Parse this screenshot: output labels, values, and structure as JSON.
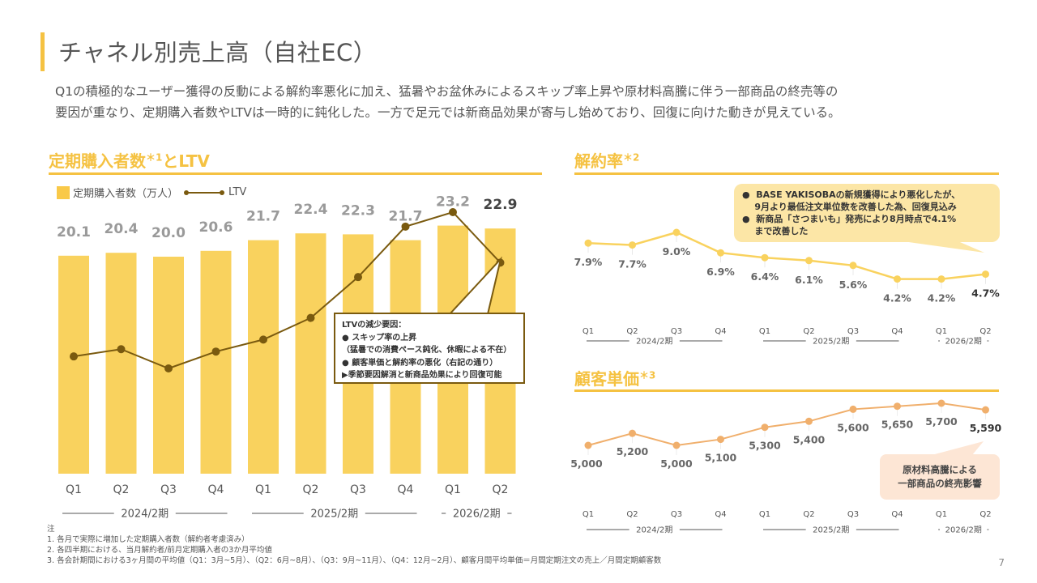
{
  "page": {
    "title": "チャネル別売上高（自社EC）",
    "lead": [
      "Q1の積極的なユーザー獲得の反動による解約率悪化に加え、猛暑やお盆休みによるスキップ率上昇や原材料高騰に伴う一部商品の終売等の",
      "要因が重なり、定期購入者数やLTVは一時的に鈍化した。一方で足元では新商品効果が寄与し始めており、回復に向けた動きが見えている。"
    ],
    "page_number": "7",
    "accent_color": "#F5C242",
    "notes": [
      "注",
      "1. 各月で実際に増加した定期購入者数（解約者考慮済み）",
      "2. 各四半期における、当月解約者/前月定期購入者の3か月平均値",
      "3. 各会計期間における3ヶ月間の平均値（Q1：3月~5月）、（Q2：6月~8月）、（Q3：9月~11月）、（Q4：12月~2月）、顧客月間平均単価＝月間定期注文の売上／月間定期顧客数"
    ]
  },
  "sections": {
    "subscribers": {
      "title": "定期購入者数",
      "sup": "＊1",
      "suffix": "とLTV"
    },
    "churn": {
      "title": "解約率",
      "sup": "＊2"
    },
    "unit_price": {
      "title": "顧客単価",
      "sup": "＊3"
    }
  },
  "legend": {
    "bar": "定期購入者数（万人）",
    "line": "LTV"
  },
  "callouts": {
    "ltv": {
      "title": "LTVの減少要因：",
      "lines": [
        "●  スキップ率の上昇",
        "（猛暑での消費ペース鈍化、休暇による不在）",
        "●  顧客単価と解約率の悪化（右記の通り）",
        "▶季節要因解消と新商品効果により回復可能"
      ]
    },
    "churn": {
      "lines": [
        "●  BASE YAKISOBAの新規獲得により悪化したが、",
        "    9月より最低注文単位数を改善した為、回復見込み",
        "●  新商品「さつまいも」発売により8月時点で4.1%",
        "    まで改善した"
      ]
    },
    "unit_price": {
      "lines": [
        "原材料高騰による",
        "一部商品の終売影響"
      ]
    }
  },
  "chart_data": [
    {
      "type": "bar",
      "title": "定期購入者数とLTV",
      "categories": [
        "Q1",
        "Q2",
        "Q3",
        "Q4",
        "Q1",
        "Q2",
        "Q3",
        "Q4",
        "Q1",
        "Q2"
      ],
      "periods": [
        {
          "label": "2024/2期",
          "quarters": 4
        },
        {
          "label": "2025/2期",
          "quarters": 4
        },
        {
          "label": "2026/2期",
          "quarters": 2
        }
      ],
      "series": [
        {
          "name": "定期購入者数（万人）",
          "type": "bar",
          "color": "#F9D25E",
          "values": [
            20.1,
            20.4,
            20.0,
            20.6,
            21.7,
            22.4,
            22.3,
            21.7,
            23.2,
            22.9
          ]
        },
        {
          "name": "LTV",
          "type": "line",
          "color": "#7A5A0F",
          "values_relative": [
            0.33,
            0.36,
            0.28,
            0.35,
            0.4,
            0.49,
            0.66,
            0.87,
            0.93,
            0.72
          ]
        }
      ],
      "highlight_last": true
    },
    {
      "type": "line",
      "title": "解約率",
      "categories": [
        "Q1",
        "Q2",
        "Q3",
        "Q4",
        "Q1",
        "Q2",
        "Q3",
        "Q4",
        "Q1",
        "Q2"
      ],
      "periods": [
        {
          "label": "2024/2期",
          "quarters": 4
        },
        {
          "label": "2025/2期",
          "quarters": 4
        },
        {
          "label": "2026/2期",
          "quarters": 2
        }
      ],
      "series": [
        {
          "name": "解約率",
          "color": "#F9D25E",
          "unit": "%",
          "values": [
            7.9,
            7.7,
            9.0,
            6.9,
            6.4,
            6.1,
            5.6,
            4.2,
            4.2,
            4.7
          ]
        }
      ],
      "ylim": [
        4.0,
        9.0
      ]
    },
    {
      "type": "line",
      "title": "顧客単価",
      "categories": [
        "Q1",
        "Q2",
        "Q3",
        "Q4",
        "Q1",
        "Q2",
        "Q3",
        "Q4",
        "Q1",
        "Q2"
      ],
      "periods": [
        {
          "label": "2024/2期",
          "quarters": 4
        },
        {
          "label": "2025/2期",
          "quarters": 4
        },
        {
          "label": "2026/2期",
          "quarters": 2
        }
      ],
      "series": [
        {
          "name": "顧客単価",
          "color": "#F0AF6C",
          "values": [
            5000,
            5200,
            5000,
            5100,
            5300,
            5400,
            5600,
            5650,
            5700,
            5590
          ]
        }
      ],
      "ylim": [
        5000,
        5700
      ]
    }
  ]
}
